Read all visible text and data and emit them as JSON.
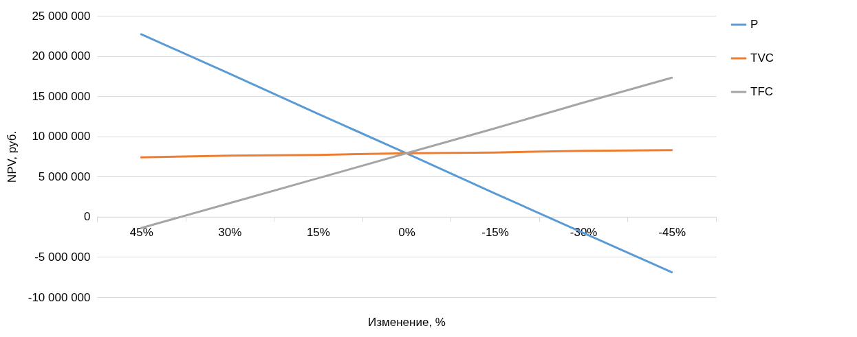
{
  "chart_data": {
    "type": "line",
    "xlabel": "Изменение, %",
    "ylabel": "NPV, руб.",
    "categories": [
      "45%",
      "30%",
      "15%",
      "0%",
      "-15%",
      "-30%",
      "-45%"
    ],
    "series": [
      {
        "name": "P",
        "color": "#5b9bd5",
        "values": [
          22700000,
          17800000,
          12800000,
          7900000,
          2900000,
          -2000000,
          -6900000
        ]
      },
      {
        "name": "TVC",
        "color": "#ed7d31",
        "values": [
          7400000,
          7600000,
          7700000,
          7900000,
          8000000,
          8200000,
          8300000
        ]
      },
      {
        "name": "TFC",
        "color": "#a5a5a5",
        "values": [
          -1400000,
          1700000,
          4800000,
          7900000,
          11000000,
          14200000,
          17300000
        ]
      }
    ],
    "ylim": [
      -10000000,
      25000000
    ],
    "yticks": [
      {
        "value": -10000000,
        "label": "-10 000 000"
      },
      {
        "value": -5000000,
        "label": "-5 000 000"
      },
      0,
      {
        "value": 5000000,
        "label": "5 000 000"
      },
      {
        "value": 10000000,
        "label": "10 000 000"
      },
      {
        "value": 15000000,
        "label": "15 000 000"
      },
      {
        "value": 20000000,
        "label": "20 000 000"
      },
      {
        "value": 25000000,
        "label": "25 000 000"
      }
    ],
    "grid": "y",
    "legend": "right",
    "marker": "none",
    "line_style": "solid"
  }
}
